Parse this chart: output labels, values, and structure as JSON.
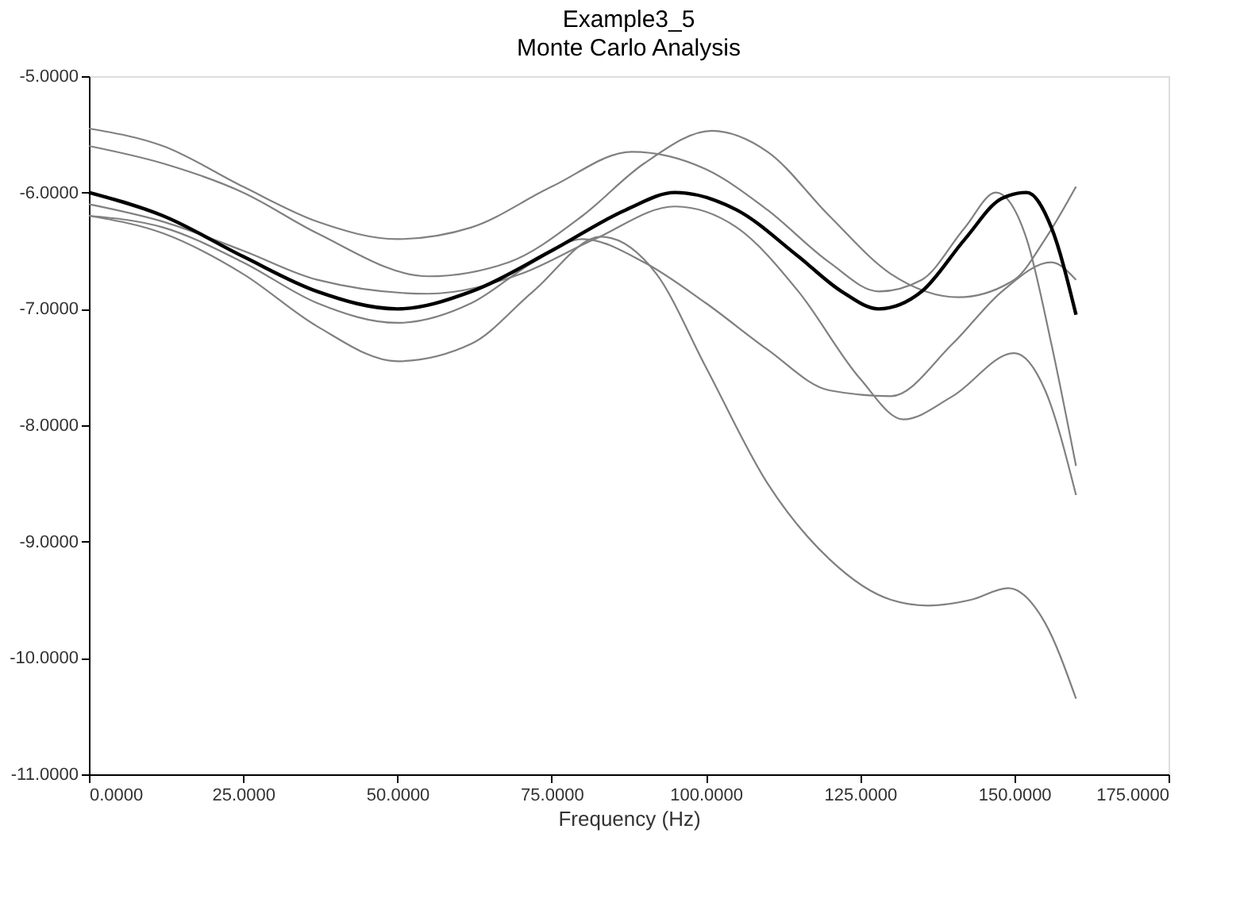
{
  "chart_data": {
    "type": "line",
    "title": "Example3_5",
    "subtitle": "Monte Carlo Analysis",
    "xlabel": "Frequency (Hz)",
    "xlim": [
      0,
      175
    ],
    "ylim": [
      -11,
      -5
    ],
    "grid": false,
    "marker": "none",
    "line_style": "solid",
    "xticks": [
      {
        "value": 0,
        "label": "0.0000"
      },
      {
        "value": 25,
        "label": "25.0000"
      },
      {
        "value": 50,
        "label": "50.0000"
      },
      {
        "value": 75,
        "label": "75.0000"
      },
      {
        "value": 100,
        "label": "100.0000"
      },
      {
        "value": 125,
        "label": "125.0000"
      },
      {
        "value": 150,
        "label": "150.0000"
      },
      {
        "value": 175,
        "label": "175.0000"
      }
    ],
    "yticks": [
      {
        "value": -11,
        "label": "-11.0000"
      },
      {
        "value": -10,
        "label": "-10.0000"
      },
      {
        "value": -9,
        "label": "-9.0000"
      },
      {
        "value": -8,
        "label": "-8.0000"
      },
      {
        "value": -7,
        "label": "-7.0000"
      },
      {
        "value": -6,
        "label": "-6.0000"
      },
      {
        "value": -5,
        "label": "-5.0000"
      }
    ],
    "series": [
      {
        "color": "#808080",
        "x": [
          0,
          12,
          25,
          37,
          50,
          62,
          75,
          88,
          100,
          110,
          120,
          128,
          135,
          142,
          147,
          152,
          156,
          160
        ],
        "values": [
          -5.45,
          -5.6,
          -5.95,
          -6.25,
          -6.4,
          -6.3,
          -5.95,
          -5.65,
          -5.8,
          -6.15,
          -6.6,
          -6.85,
          -6.75,
          -6.3,
          -6.0,
          -6.4,
          -7.3,
          -8.35
        ]
      },
      {
        "color": "#808080",
        "x": [
          0,
          12,
          25,
          37,
          55,
          68,
          80,
          90,
          101,
          110,
          120,
          130,
          141,
          150,
          155,
          160
        ],
        "values": [
          -5.6,
          -5.75,
          -6.0,
          -6.35,
          -6.72,
          -6.6,
          -6.2,
          -5.75,
          -5.47,
          -5.65,
          -6.2,
          -6.7,
          -6.9,
          -6.75,
          -6.4,
          -5.95
        ]
      },
      {
        "color": "#808080",
        "x": [
          0,
          12,
          25,
          37,
          55,
          70,
          82,
          95,
          105,
          115,
          125,
          132,
          140,
          150,
          155,
          160
        ],
        "values": [
          -6.1,
          -6.25,
          -6.5,
          -6.75,
          -6.87,
          -6.7,
          -6.4,
          -6.12,
          -6.3,
          -6.85,
          -7.6,
          -7.95,
          -7.75,
          -7.38,
          -7.7,
          -8.6
        ]
      },
      {
        "color": "#808080",
        "x": [
          0,
          12,
          25,
          37,
          50,
          62,
          72,
          80,
          90,
          100,
          110,
          120,
          130,
          140,
          148,
          156,
          160
        ],
        "values": [
          -6.2,
          -6.3,
          -6.6,
          -6.95,
          -7.12,
          -6.95,
          -6.6,
          -6.4,
          -6.6,
          -6.95,
          -7.35,
          -7.7,
          -7.75,
          -7.3,
          -6.85,
          -6.6,
          -6.75
        ]
      },
      {
        "color": "#808080",
        "x": [
          0,
          12,
          25,
          37,
          50,
          62,
          72,
          83,
          92,
          100,
          110,
          120,
          130,
          136,
          143,
          149,
          155,
          160
        ],
        "values": [
          -6.2,
          -6.35,
          -6.7,
          -7.15,
          -7.45,
          -7.3,
          -6.85,
          -6.38,
          -6.7,
          -7.5,
          -8.5,
          -9.15,
          -9.5,
          -9.55,
          -9.5,
          -9.4,
          -9.7,
          -10.35
        ]
      },
      {
        "color": "#000000",
        "x": [
          0,
          12,
          25,
          37,
          50,
          62,
          75,
          87,
          95,
          105,
          115,
          122,
          128,
          135,
          142,
          148,
          152,
          156,
          160
        ],
        "values": [
          -6.0,
          -6.2,
          -6.55,
          -6.85,
          -7.0,
          -6.85,
          -6.5,
          -6.15,
          -6.0,
          -6.15,
          -6.55,
          -6.85,
          -7.0,
          -6.85,
          -6.4,
          -6.05,
          -6.0,
          -6.3,
          -7.05
        ]
      }
    ]
  }
}
